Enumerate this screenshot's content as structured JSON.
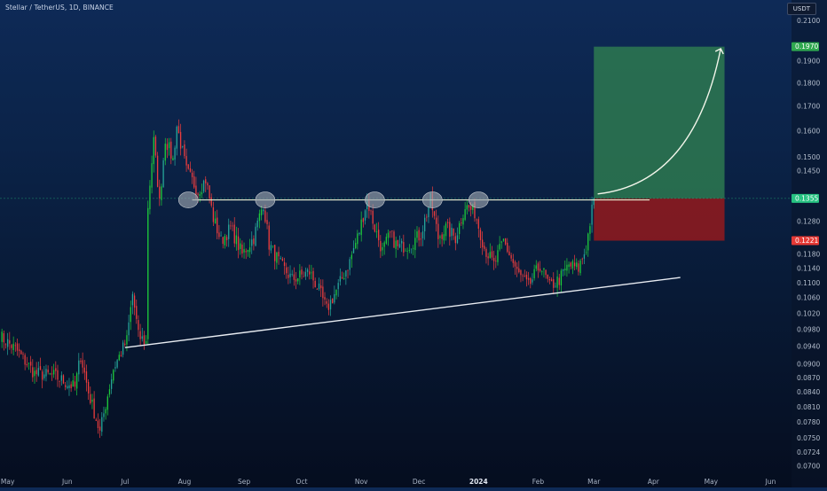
{
  "header": {
    "title": "Stellar / TetherUS, 1D, BINANCE",
    "currency": "USDT"
  },
  "chart_data": {
    "type": "candlestick",
    "symbol": "Stellar / TetherUS",
    "interval": "1D",
    "exchange": "BINANCE",
    "y_axis": {
      "scale": "log",
      "range": [
        0.0688,
        0.2125
      ],
      "tick_labels": [
        "0.2100",
        "0.1900",
        "0.1800",
        "0.1700",
        "0.1600",
        "0.1500",
        "0.1450",
        "0.1280",
        "0.1180",
        "0.1140",
        "0.1100",
        "0.1060",
        "0.1020",
        "0.0980",
        "0.0940",
        "0.0900",
        "0.0870",
        "0.0840",
        "0.0810",
        "0.0780",
        "0.0750",
        "0.0724",
        "0.0700"
      ]
    },
    "x_axis": {
      "range": [
        "2023-04-27",
        "2024-06-10"
      ],
      "tick_labels": [
        {
          "date": "2023-05-01",
          "label": "May"
        },
        {
          "date": "2023-06-01",
          "label": "Jun"
        },
        {
          "date": "2023-07-01",
          "label": "Jul"
        },
        {
          "date": "2023-08-01",
          "label": "Aug"
        },
        {
          "date": "2023-09-01",
          "label": "Sep"
        },
        {
          "date": "2023-10-01",
          "label": "Oct"
        },
        {
          "date": "2023-11-01",
          "label": "Nov"
        },
        {
          "date": "2023-12-01",
          "label": "Dec"
        },
        {
          "date": "2024-01-01",
          "label": "2024",
          "bold": true
        },
        {
          "date": "2024-02-01",
          "label": "Feb"
        },
        {
          "date": "2024-03-01",
          "label": "Mar"
        },
        {
          "date": "2024-04-01",
          "label": "Apr"
        },
        {
          "date": "2024-05-01",
          "label": "May"
        },
        {
          "date": "2024-06-01",
          "label": "Jun"
        }
      ]
    },
    "price_path": [
      [
        "2023-04-27",
        0.0965
      ],
      [
        "2023-05-05",
        0.0935
      ],
      [
        "2023-05-15",
        0.088
      ],
      [
        "2023-05-25",
        0.0875
      ],
      [
        "2023-06-05",
        0.085
      ],
      [
        "2023-06-08",
        0.092
      ],
      [
        "2023-06-12",
        0.084
      ],
      [
        "2023-06-18",
        0.076
      ],
      [
        "2023-06-25",
        0.089
      ],
      [
        "2023-07-02",
        0.0955
      ],
      [
        "2023-07-05",
        0.107
      ],
      [
        "2023-07-08",
        0.0965
      ],
      [
        "2023-07-12",
        0.095
      ],
      [
        "2023-07-13",
        0.133
      ],
      [
        "2023-07-16",
        0.156
      ],
      [
        "2023-07-19",
        0.134
      ],
      [
        "2023-07-22",
        0.157
      ],
      [
        "2023-07-26",
        0.149
      ],
      [
        "2023-07-28",
        0.162
      ],
      [
        "2023-08-02",
        0.145
      ],
      [
        "2023-08-08",
        0.138
      ],
      [
        "2023-08-12",
        0.142
      ],
      [
        "2023-08-16",
        0.129
      ],
      [
        "2023-08-20",
        0.122
      ],
      [
        "2023-08-25",
        0.126
      ],
      [
        "2023-08-31",
        0.118
      ],
      [
        "2023-09-06",
        0.123
      ],
      [
        "2023-09-11",
        0.134
      ],
      [
        "2023-09-14",
        0.121
      ],
      [
        "2023-09-20",
        0.115
      ],
      [
        "2023-09-26",
        0.111
      ],
      [
        "2023-10-05",
        0.113
      ],
      [
        "2023-10-10",
        0.108
      ],
      [
        "2023-10-14",
        0.103
      ],
      [
        "2023-10-20",
        0.109
      ],
      [
        "2023-10-26",
        0.116
      ],
      [
        "2023-10-31",
        0.125
      ],
      [
        "2023-11-04",
        0.135
      ],
      [
        "2023-11-08",
        0.126
      ],
      [
        "2023-11-12",
        0.119
      ],
      [
        "2023-11-16",
        0.124
      ],
      [
        "2023-11-20",
        0.12
      ],
      [
        "2023-11-26",
        0.121
      ],
      [
        "2023-12-02",
        0.124
      ],
      [
        "2023-12-07",
        0.135
      ],
      [
        "2023-12-11",
        0.123
      ],
      [
        "2023-12-15",
        0.126
      ],
      [
        "2023-12-20",
        0.123
      ],
      [
        "2023-12-25",
        0.133
      ],
      [
        "2023-12-30",
        0.131
      ],
      [
        "2024-01-04",
        0.12
      ],
      [
        "2024-01-09",
        0.115
      ],
      [
        "2024-01-14",
        0.122
      ],
      [
        "2024-01-21",
        0.113
      ],
      [
        "2024-01-27",
        0.109
      ],
      [
        "2024-02-02",
        0.115
      ],
      [
        "2024-02-07",
        0.109
      ],
      [
        "2024-02-12",
        0.111
      ],
      [
        "2024-02-17",
        0.115
      ],
      [
        "2024-02-22",
        0.114
      ],
      [
        "2024-02-26",
        0.12
      ],
      [
        "2024-03-01",
        0.1355
      ]
    ],
    "last_price": 0.1355,
    "price_labels": [
      {
        "value": "0.1970",
        "color": "#2fa84f"
      },
      {
        "value": "0.1355",
        "color": "#26c281"
      },
      {
        "value": "0.1221",
        "color": "#e53935"
      }
    ],
    "annotations": {
      "resistance": {
        "start": [
          "2023-08-05",
          0.135
        ],
        "end": [
          "2024-03-30",
          0.135
        ]
      },
      "support_trendline": {
        "start": [
          "2023-07-01",
          0.0938
        ],
        "end": [
          "2024-04-15",
          0.1115
        ]
      },
      "touch_points": [
        [
          "2023-08-03",
          0.135
        ],
        [
          "2023-09-12",
          0.135
        ],
        [
          "2023-11-08",
          0.135
        ],
        [
          "2023-12-08",
          0.135
        ],
        [
          "2024-01-01",
          0.135
        ]
      ],
      "long_position": {
        "start": "2024-03-01",
        "end": "2024-05-08",
        "entry": 0.1355,
        "target": 0.197,
        "stop": 0.1221,
        "profit_color": "#2e7d50",
        "loss_color": "#8c1a1f"
      },
      "projection_arrow": {
        "start": [
          "2024-03-03",
          0.137
        ],
        "end": [
          "2024-05-06",
          0.196
        ]
      }
    },
    "colors": {
      "up": "#26a69a",
      "up_bright": "#1ecb3b",
      "down": "#ef3d3d"
    },
    "grid": false,
    "legend": "none"
  }
}
